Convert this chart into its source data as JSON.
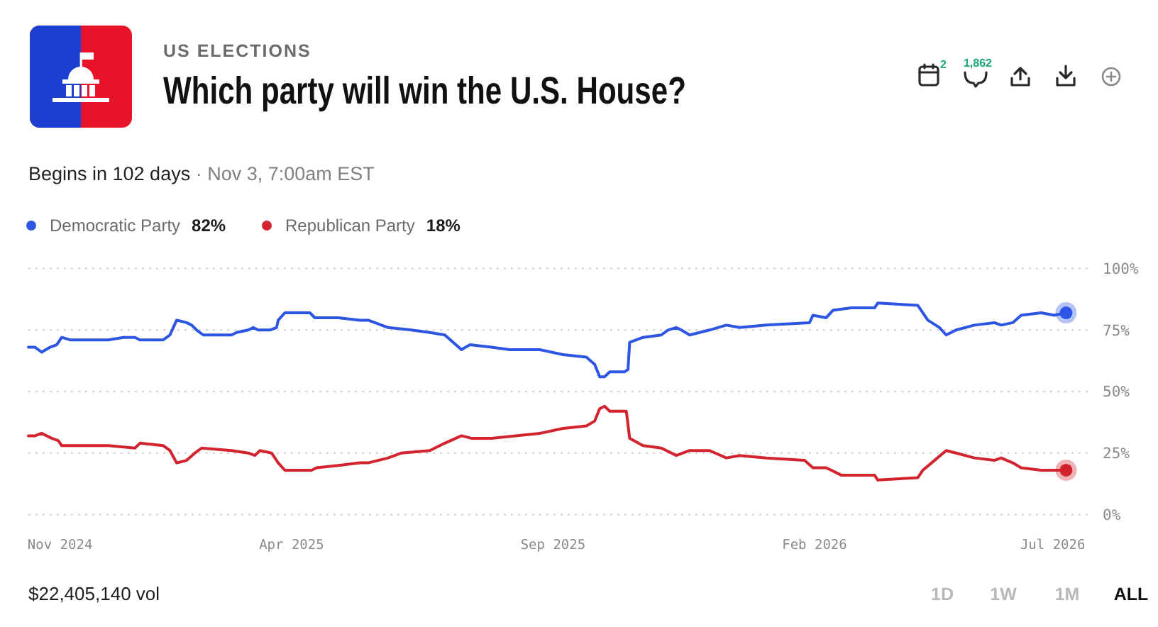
{
  "chart_data": {
    "type": "line",
    "title": "Which party will win the U.S. House?",
    "subtitle": "Begins in 102 days",
    "annotations": [
      "US ELECTIONS",
      "· Nov 3, 7:00am EST",
      "82%",
      "18%",
      "2",
      "1,862",
      "$22,405,140 vol",
      "1D",
      "1W",
      "1M",
      "ALL"
    ],
    "xlim": [
      "2024-11-08",
      "2026-08-09"
    ],
    "xticks": [
      {
        "value": "2024-11-27",
        "label": "Nov 2024"
      },
      {
        "value": "2025-04-15",
        "label": "Apr 2025"
      },
      {
        "value": "2025-09-19",
        "label": "Sep 2025"
      },
      {
        "value": "2026-02-23",
        "label": "Feb 2026"
      },
      {
        "value": "2026-07-16",
        "label": "Jul 2026"
      }
    ],
    "ylim": [
      0,
      100
    ],
    "yticks": [
      {
        "value": 0,
        "label": "0%"
      },
      {
        "value": 25,
        "label": "25%"
      },
      {
        "value": 50,
        "label": "50%"
      },
      {
        "value": 75,
        "label": "75%"
      },
      {
        "value": 100,
        "label": "100%"
      }
    ],
    "grid": "y",
    "legend": "top left",
    "series": [
      {
        "name": "Democratic Party",
        "color": "#2d55e3",
        "x": [
          "2024-11-08",
          "2024-11-12",
          "2024-11-16",
          "2024-11-21",
          "2024-11-25",
          "2024-11-28",
          "2024-12-03",
          "2024-12-26",
          "2025-01-04",
          "2025-01-11",
          "2025-01-14",
          "2025-01-28",
          "2025-02-01",
          "2025-02-05",
          "2025-02-11",
          "2025-02-14",
          "2025-02-17",
          "2025-02-21",
          "2025-02-26",
          "2025-03-10",
          "2025-03-13",
          "2025-03-20",
          "2025-03-23",
          "2025-03-26",
          "2025-04-02",
          "2025-04-06",
          "2025-04-07",
          "2025-04-11",
          "2025-04-26",
          "2025-04-29",
          "2025-05-13",
          "2025-05-26",
          "2025-05-31",
          "2025-06-12",
          "2025-06-26",
          "2025-07-07",
          "2025-07-16",
          "2025-07-26",
          "2025-07-31",
          "2025-08-13",
          "2025-08-24",
          "2025-09-11",
          "2025-09-25",
          "2025-10-09",
          "2025-10-14",
          "2025-10-17",
          "2025-10-20",
          "2025-10-23",
          "2025-11-01",
          "2025-11-03",
          "2025-11-04",
          "2025-11-12",
          "2025-11-23",
          "2025-11-27",
          "2025-12-02",
          "2025-12-05",
          "2025-12-10",
          "2025-12-22",
          "2026-01-01",
          "2026-01-09",
          "2026-01-25",
          "2026-02-20",
          "2026-02-22",
          "2026-03-02",
          "2026-03-06",
          "2026-03-17",
          "2026-03-31",
          "2026-04-02",
          "2026-04-26",
          "2026-05-02",
          "2026-05-09",
          "2026-05-13",
          "2026-05-19",
          "2026-05-30",
          "2026-06-11",
          "2026-06-15",
          "2026-06-22",
          "2026-06-27",
          "2026-07-09",
          "2026-07-17",
          "2026-07-24"
        ],
        "values": [
          68,
          68,
          66,
          68,
          69,
          72,
          71,
          71,
          72,
          72,
          71,
          71,
          73,
          79,
          78,
          77,
          75,
          73,
          73,
          73,
          74,
          75,
          76,
          75,
          75,
          76,
          79,
          82,
          82,
          80,
          80,
          79,
          79,
          76,
          75,
          74,
          73,
          67,
          69,
          68,
          67,
          67,
          65,
          64,
          61,
          56,
          56,
          58,
          58,
          59,
          70,
          72,
          73,
          75,
          76,
          75,
          73,
          75,
          77,
          76,
          77,
          78,
          81,
          80,
          83,
          84,
          84,
          86,
          85,
          79,
          76,
          73,
          75,
          77,
          78,
          77,
          78,
          81,
          82,
          81,
          82
        ]
      },
      {
        "name": "Republican Party",
        "color": "#d2232f",
        "x": [
          "2024-11-08",
          "2024-11-12",
          "2024-11-16",
          "2024-11-22",
          "2024-11-26",
          "2024-11-28",
          "2024-12-26",
          "2025-01-11",
          "2025-01-14",
          "2025-01-28",
          "2025-02-01",
          "2025-02-05",
          "2025-02-11",
          "2025-02-16",
          "2025-02-20",
          "2025-03-10",
          "2025-03-20",
          "2025-03-24",
          "2025-03-27",
          "2025-04-03",
          "2025-04-07",
          "2025-04-11",
          "2025-04-27",
          "2025-04-30",
          "2025-05-14",
          "2025-05-26",
          "2025-05-31",
          "2025-06-12",
          "2025-06-20",
          "2025-07-07",
          "2025-07-16",
          "2025-07-26",
          "2025-08-01",
          "2025-08-13",
          "2025-09-11",
          "2025-09-25",
          "2025-10-09",
          "2025-10-14",
          "2025-10-17",
          "2025-10-20",
          "2025-10-23",
          "2025-11-02",
          "2025-11-04",
          "2025-11-12",
          "2025-11-23",
          "2025-12-02",
          "2025-12-10",
          "2025-12-22",
          "2026-01-01",
          "2026-01-09",
          "2026-01-25",
          "2026-02-17",
          "2026-02-22",
          "2026-03-02",
          "2026-03-11",
          "2026-03-31",
          "2026-04-02",
          "2026-04-26",
          "2026-04-29",
          "2026-05-06",
          "2026-05-13",
          "2026-05-19",
          "2026-05-30",
          "2026-06-11",
          "2026-06-15",
          "2026-06-22",
          "2026-06-27",
          "2026-07-09",
          "2026-07-17",
          "2026-07-24"
        ],
        "values": [
          32,
          32,
          33,
          31,
          30,
          28,
          28,
          27,
          29,
          28,
          26,
          21,
          22,
          25,
          27,
          26,
          25,
          24,
          26,
          25,
          21,
          18,
          18,
          19,
          20,
          21,
          21,
          23,
          25,
          26,
          29,
          32,
          31,
          31,
          33,
          35,
          36,
          38,
          43,
          44,
          42,
          42,
          31,
          28,
          27,
          24,
          26,
          26,
          23,
          24,
          23,
          22,
          19,
          19,
          16,
          16,
          14,
          15,
          18,
          22,
          26,
          25,
          23,
          22,
          23,
          21,
          19,
          18,
          18,
          18
        ]
      }
    ]
  }
}
